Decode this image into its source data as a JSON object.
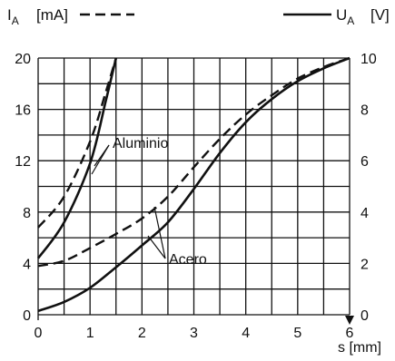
{
  "chart_data": {
    "type": "line",
    "xlabel": "s [mm]",
    "ylabel_left": {
      "symbol": "I",
      "subscript": "A",
      "unit": "[mA]"
    },
    "ylabel_right": {
      "symbol": "U",
      "subscript": "A",
      "unit": "[V]"
    },
    "x_ticks": [
      0,
      1,
      2,
      3,
      4,
      5,
      6
    ],
    "y_left_ticks": [
      0,
      4,
      8,
      12,
      16,
      20
    ],
    "y_right_ticks": [
      0,
      2,
      4,
      6,
      8,
      10
    ],
    "xlim": [
      0,
      6
    ],
    "ylim_left": [
      0,
      20
    ],
    "ylim_right": [
      0,
      10
    ],
    "grid": true,
    "legend": {
      "placement": "top",
      "dashed": "I_A [mA]",
      "solid": "U_A [V]"
    },
    "series": [
      {
        "material": "Aluminio",
        "style": "dashed",
        "axis": "left",
        "x": [
          0,
          0.5,
          1.0,
          1.3,
          1.5
        ],
        "y": [
          6.8,
          9.2,
          13.5,
          17.3,
          20.0
        ]
      },
      {
        "material": "Aluminio",
        "style": "solid",
        "axis": "right",
        "x": [
          0,
          0.5,
          1.0,
          1.3,
          1.5
        ],
        "y": [
          2.2,
          3.6,
          5.9,
          8.3,
          10.0
        ]
      },
      {
        "material": "Acero",
        "style": "dashed",
        "axis": "left",
        "x": [
          0,
          0.5,
          1,
          1.5,
          2,
          2.5,
          3,
          3.5,
          4,
          4.5,
          5,
          5.5,
          6
        ],
        "y": [
          3.8,
          4.2,
          5.2,
          6.3,
          7.5,
          9.2,
          11.5,
          13.7,
          15.6,
          17.1,
          18.4,
          19.3,
          20.0
        ]
      },
      {
        "material": "Acero",
        "style": "solid",
        "axis": "right",
        "x": [
          0,
          0.5,
          1,
          1.5,
          2,
          2.5,
          3,
          3.5,
          4,
          4.5,
          5,
          5.5,
          6
        ],
        "y": [
          0.15,
          0.5,
          1.05,
          1.85,
          2.7,
          3.6,
          4.9,
          6.3,
          7.5,
          8.4,
          9.1,
          9.6,
          10.0
        ]
      }
    ],
    "annotations": [
      {
        "text": "Aluminio"
      },
      {
        "text": "Acero"
      }
    ]
  }
}
